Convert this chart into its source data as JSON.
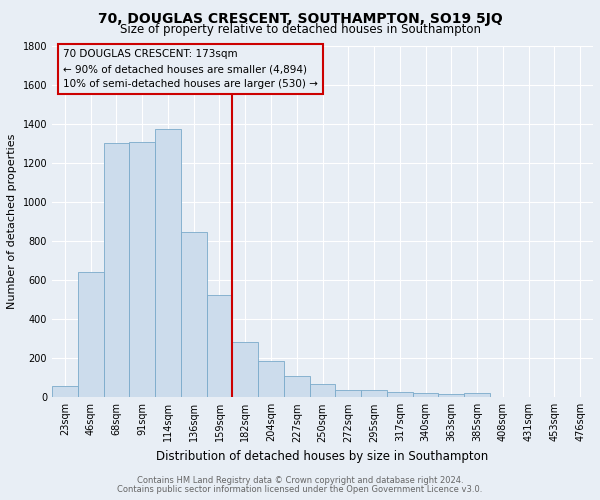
{
  "title1": "70, DOUGLAS CRESCENT, SOUTHAMPTON, SO19 5JQ",
  "title2": "Size of property relative to detached houses in Southampton",
  "xlabel": "Distribution of detached houses by size in Southampton",
  "ylabel": "Number of detached properties",
  "bar_labels": [
    "23sqm",
    "46sqm",
    "68sqm",
    "91sqm",
    "114sqm",
    "136sqm",
    "159sqm",
    "182sqm",
    "204sqm",
    "227sqm",
    "250sqm",
    "272sqm",
    "295sqm",
    "317sqm",
    "340sqm",
    "363sqm",
    "385sqm",
    "408sqm",
    "431sqm",
    "453sqm",
    "476sqm"
  ],
  "bar_values": [
    60,
    640,
    1305,
    1310,
    1375,
    845,
    525,
    285,
    185,
    110,
    70,
    40,
    40,
    25,
    20,
    15,
    20,
    0,
    0,
    0,
    0
  ],
  "bar_color": "#ccdcec",
  "bar_edge_color": "#7aaaca",
  "vline_x": 7,
  "vline_color": "#cc0000",
  "annotation_title": "70 DOUGLAS CRESCENT: 173sqm",
  "annotation_line1": "← 90% of detached houses are smaller (4,894)",
  "annotation_line2": "10% of semi-detached houses are larger (530) →",
  "annotation_box_edge": "#cc0000",
  "ylim": [
    0,
    1800
  ],
  "yticks": [
    0,
    200,
    400,
    600,
    800,
    1000,
    1200,
    1400,
    1600,
    1800
  ],
  "footnote1": "Contains HM Land Registry data © Crown copyright and database right 2024.",
  "footnote2": "Contains public sector information licensed under the Open Government Licence v3.0.",
  "bg_color": "#e8eef5",
  "grid_color": "#ffffff",
  "title_fontsize": 10,
  "subtitle_fontsize": 8.5,
  "ylabel_fontsize": 8,
  "xlabel_fontsize": 8.5,
  "tick_fontsize": 7,
  "footnote_fontsize": 6,
  "annot_fontsize": 7.5
}
